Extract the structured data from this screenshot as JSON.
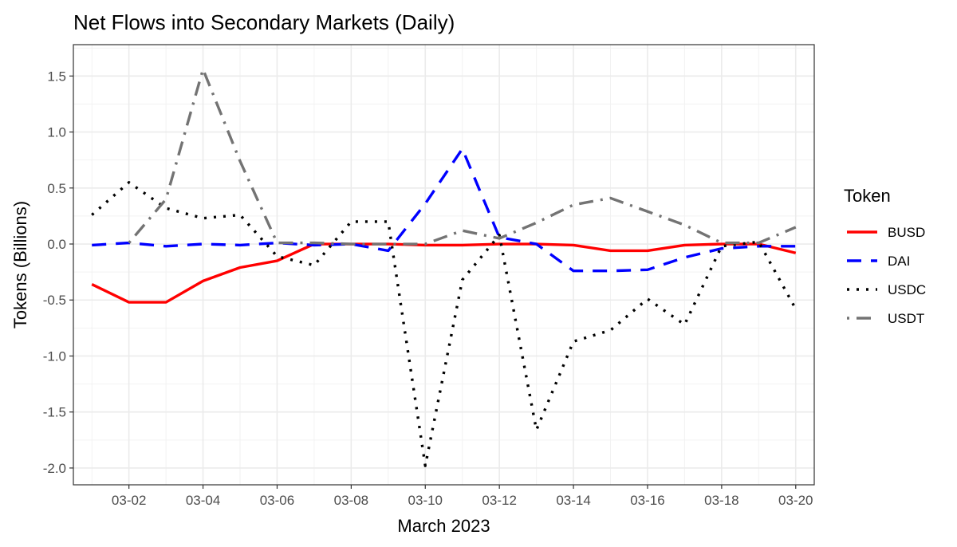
{
  "chart_data": {
    "type": "line",
    "title": "Net Flows into Secondary Markets (Daily)",
    "xlabel": "March 2023",
    "ylabel": "Tokens (Billions)",
    "x": [
      "03-01",
      "03-02",
      "03-03",
      "03-04",
      "03-05",
      "03-06",
      "03-07",
      "03-08",
      "03-09",
      "03-10",
      "03-11",
      "03-12",
      "03-13",
      "03-14",
      "03-15",
      "03-16",
      "03-17",
      "03-18",
      "03-19",
      "03-20"
    ],
    "x_tick_labels": [
      "03-02",
      "03-04",
      "03-06",
      "03-08",
      "03-10",
      "03-12",
      "03-14",
      "03-16",
      "03-18",
      "03-20"
    ],
    "y_tick_labels": [
      "1.5",
      "1.0",
      "0.5",
      "0.0",
      "-0.5",
      "-1.0",
      "-1.5",
      "-2.0"
    ],
    "xlim": [
      "02-28 12:00",
      "03-20 12:00"
    ],
    "ylim": [
      -2.15,
      1.78
    ],
    "grid": true,
    "legend": {
      "title": "Token",
      "position": "right"
    },
    "series": [
      {
        "name": "BUSD",
        "color": "#ff0000",
        "dash": "solid",
        "values": [
          -0.36,
          -0.52,
          -0.52,
          -0.33,
          -0.21,
          -0.15,
          0.0,
          0.0,
          0.0,
          -0.01,
          -0.01,
          0.0,
          0.0,
          -0.01,
          -0.06,
          -0.06,
          -0.01,
          0.0,
          0.0,
          -0.08
        ]
      },
      {
        "name": "DAI",
        "color": "#0000ff",
        "dash": "dashed",
        "values": [
          -0.01,
          0.01,
          -0.02,
          0.0,
          -0.01,
          0.01,
          -0.01,
          0.0,
          -0.06,
          0.36,
          0.85,
          0.06,
          0.0,
          -0.24,
          -0.24,
          -0.23,
          -0.12,
          -0.04,
          -0.02,
          -0.02
        ]
      },
      {
        "name": "USDC",
        "color": "#000000",
        "dash": "dotted",
        "values": [
          0.26,
          0.55,
          0.32,
          0.23,
          0.26,
          -0.11,
          -0.19,
          0.2,
          0.2,
          -1.98,
          -0.32,
          0.08,
          -1.66,
          -0.87,
          -0.77,
          -0.49,
          -0.72,
          -0.02,
          0.02,
          -0.58
        ]
      },
      {
        "name": "USDT",
        "color": "#737373",
        "dash": "dotdash",
        "values": [
          null,
          0.01,
          0.4,
          1.56,
          0.74,
          0.01,
          0.01,
          0.0,
          0.0,
          0.0,
          0.12,
          0.05,
          0.19,
          0.35,
          0.41,
          0.29,
          0.17,
          0.01,
          0.01,
          0.15
        ]
      }
    ]
  }
}
